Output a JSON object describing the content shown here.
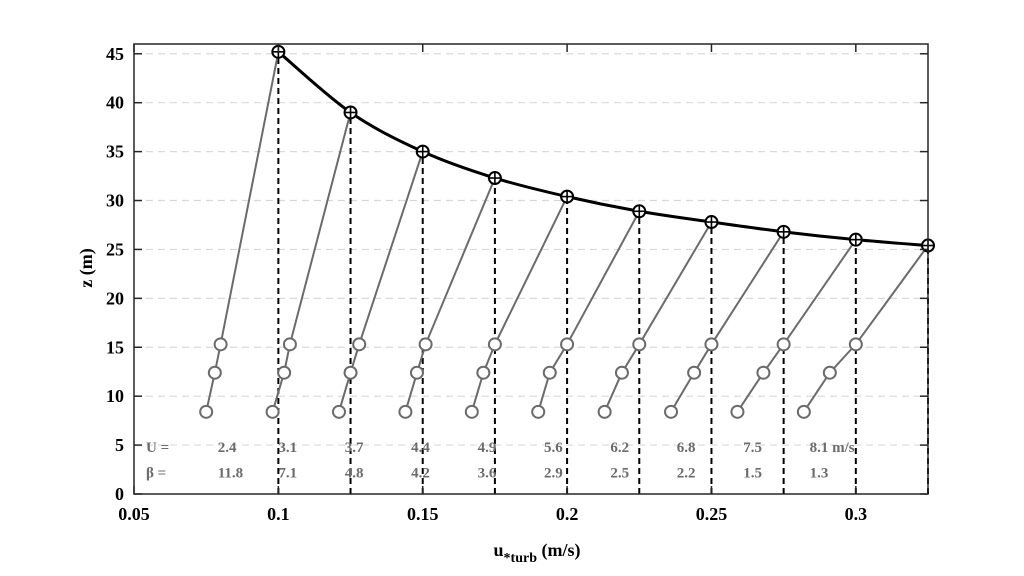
{
  "chart_data": {
    "type": "line",
    "xlabel_main": "u",
    "xlabel_sub": "*turb",
    "xlabel_unit": " (m/s)",
    "ylabel": "z (m)",
    "xlim": [
      0.05,
      0.325
    ],
    "ylim": [
      0,
      46
    ],
    "xticks": [
      0.05,
      0.1,
      0.15,
      0.2,
      0.25,
      0.3
    ],
    "xtick_labels": [
      "0.05",
      "0.1",
      "0.15",
      "0.2",
      "0.25",
      "0.3"
    ],
    "yticks": [
      0,
      5,
      10,
      15,
      20,
      25,
      30,
      35,
      40,
      45
    ],
    "ytick_labels": [
      "0",
      "5",
      "10",
      "15",
      "20",
      "25",
      "30",
      "35",
      "40",
      "45"
    ],
    "grid": "horizontal dashed",
    "top_curve": {
      "x": [
        0.1,
        0.125,
        0.15,
        0.175,
        0.2,
        0.225,
        0.25,
        0.275,
        0.3,
        0.325
      ],
      "y": [
        45.2,
        39.0,
        35.0,
        32.3,
        30.4,
        28.9,
        27.8,
        26.8,
        26.0,
        25.4
      ]
    },
    "profiles": [
      {
        "x": [
          0.075,
          0.078,
          0.08,
          0.1
        ],
        "y": [
          8.4,
          12.4,
          15.3,
          45.2
        ]
      },
      {
        "x": [
          0.098,
          0.102,
          0.104,
          0.125
        ],
        "y": [
          8.4,
          12.4,
          15.3,
          39.0
        ]
      },
      {
        "x": [
          0.121,
          0.125,
          0.128,
          0.15
        ],
        "y": [
          8.4,
          12.4,
          15.3,
          35.0
        ]
      },
      {
        "x": [
          0.144,
          0.148,
          0.151,
          0.175
        ],
        "y": [
          8.4,
          12.4,
          15.3,
          32.3
        ]
      },
      {
        "x": [
          0.167,
          0.171,
          0.175,
          0.2
        ],
        "y": [
          8.4,
          12.4,
          15.3,
          30.4
        ]
      },
      {
        "x": [
          0.19,
          0.194,
          0.2,
          0.225
        ],
        "y": [
          8.4,
          12.4,
          15.3,
          28.9
        ]
      },
      {
        "x": [
          0.213,
          0.219,
          0.225,
          0.25
        ],
        "y": [
          8.4,
          12.4,
          15.3,
          27.8
        ]
      },
      {
        "x": [
          0.236,
          0.244,
          0.25,
          0.275
        ],
        "y": [
          8.4,
          12.4,
          15.3,
          26.8
        ]
      },
      {
        "x": [
          0.259,
          0.268,
          0.275,
          0.3
        ],
        "y": [
          8.4,
          12.4,
          15.3,
          26.0
        ]
      },
      {
        "x": [
          0.282,
          0.291,
          0.3,
          0.325
        ],
        "y": [
          8.4,
          12.4,
          15.3,
          25.4
        ]
      }
    ],
    "vlines_x": [
      0.1,
      0.125,
      0.15,
      0.175,
      0.2,
      0.225,
      0.25,
      0.275,
      0.3,
      0.325
    ],
    "annotations": {
      "u_prefix": "U =",
      "beta_prefix": "β =",
      "u_values": [
        "2.4",
        "3.1",
        "3.7",
        "4.4",
        "4.9",
        "5.6",
        "6.2",
        "6.8",
        "7.5",
        "8.1 m/s"
      ],
      "beta_values": [
        "11.8",
        "7.1",
        "4.8",
        "4.2",
        "3.6",
        "2.9",
        "2.5",
        "2.2",
        "1.5",
        "1.3"
      ],
      "u_x": [
        0.079,
        0.1,
        0.123,
        0.146,
        0.169,
        0.192,
        0.215,
        0.238,
        0.261,
        0.284
      ],
      "u_y": 4.8,
      "beta_y": 2.2
    },
    "colors": {
      "profile": "#6b6b6b",
      "curve": "#000000",
      "vline": "#000000",
      "grid": "#d9d9d9",
      "annotation": "#6b6b6b"
    }
  }
}
